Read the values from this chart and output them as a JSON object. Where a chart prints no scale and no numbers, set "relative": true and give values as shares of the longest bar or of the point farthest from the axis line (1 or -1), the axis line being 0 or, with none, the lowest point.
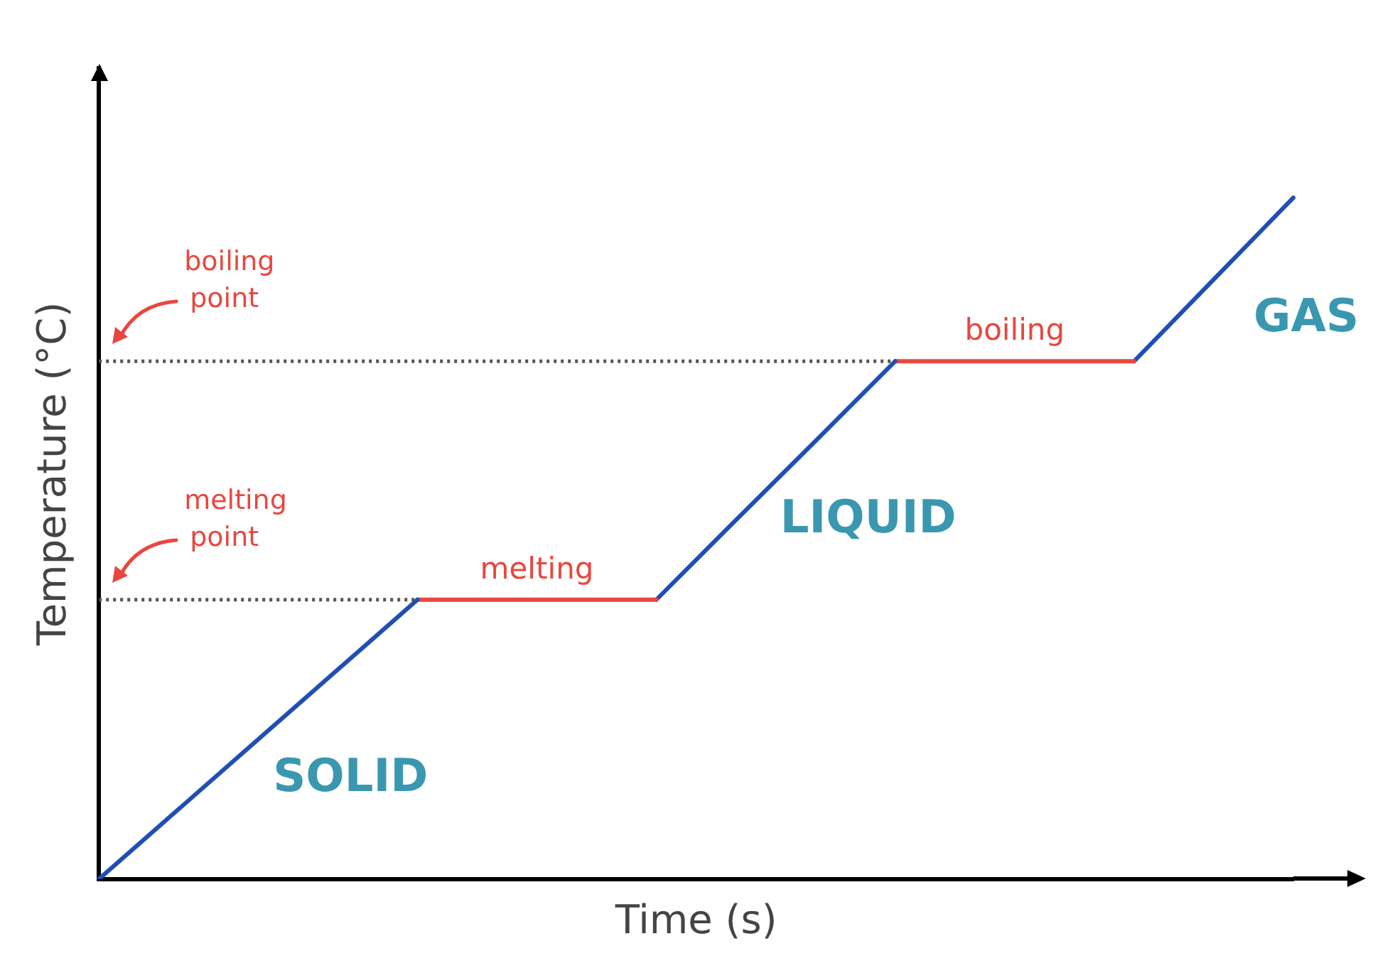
{
  "chart_data": {
    "type": "line",
    "relative": true,
    "xlabel": "Time (s)",
    "ylabel": "Temperature (°C)",
    "grid": false,
    "legend": false,
    "marker": "none",
    "line_style": "solid",
    "categories": [
      null,
      null,
      null,
      null,
      null,
      null,
      null,
      null,
      null,
      null,
      null,
      null,
      null,
      null,
      null,
      null
    ],
    "series": [
      {
        "name": "SOLID",
        "color": "#1f4fb5",
        "values": [
          0,
          0.1025,
          0.205,
          0.3075,
          0.41,
          null,
          null,
          null,
          null,
          null,
          null,
          null,
          null,
          null,
          null,
          null
        ]
      },
      {
        "name": "melting",
        "color": "#e8473f",
        "values": [
          null,
          null,
          null,
          null,
          0.41,
          0.41,
          0.41,
          0.41,
          null,
          null,
          null,
          null,
          null,
          null,
          null,
          null
        ]
      },
      {
        "name": "LIQUID",
        "color": "#1f4fb5",
        "values": [
          null,
          null,
          null,
          null,
          null,
          null,
          null,
          0.41,
          0.527,
          0.643,
          0.76,
          null,
          null,
          null,
          null,
          null
        ]
      },
      {
        "name": "boiling",
        "color": "#e8473f",
        "values": [
          null,
          null,
          null,
          null,
          null,
          null,
          null,
          null,
          null,
          null,
          0.76,
          0.76,
          0.76,
          0.76,
          null,
          null
        ]
      },
      {
        "name": "GAS",
        "color": "#1f4fb5",
        "values": [
          null,
          null,
          null,
          null,
          null,
          null,
          null,
          null,
          null,
          null,
          null,
          null,
          null,
          0.76,
          0.88,
          1
        ]
      }
    ],
    "ref_lines": [
      {
        "axis": "y",
        "value": 0.41,
        "label": "melting point",
        "color": "#555555",
        "line_style": "dotted"
      },
      {
        "axis": "y",
        "value": 0.76,
        "label": "boiling point",
        "color": "#555555",
        "line_style": "dotted"
      }
    ]
  }
}
